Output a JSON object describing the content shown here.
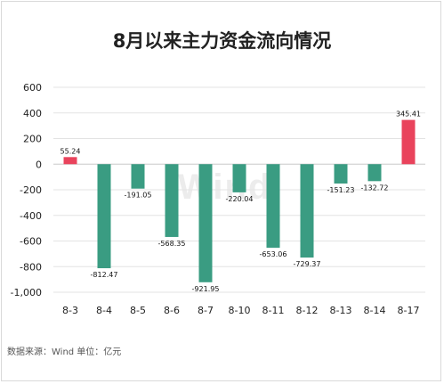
{
  "colors": {
    "positive": "#e9435c",
    "negative": "#3a9c82",
    "grid": "#e3e3e3"
  },
  "footer": {
    "source": "数据来源：Wind    单位：亿元"
  },
  "chart_data": {
    "type": "bar",
    "title": "8月以来主力资金流向情况",
    "categories": [
      "8-3",
      "8-4",
      "8-5",
      "8-6",
      "8-7",
      "8-10",
      "8-11",
      "8-12",
      "8-13",
      "8-14",
      "8-17"
    ],
    "values": [
      55.24,
      -812.47,
      -191.05,
      -568.35,
      -921.95,
      -220.04,
      -653.06,
      -729.37,
      -151.23,
      -132.72,
      345.41
    ],
    "data_labels": [
      "55.24",
      "-812.47",
      "-191.05",
      "-568.35",
      "-921.95",
      "-220.04",
      "-653.06",
      "-729.37",
      "-151.23",
      "-132.72",
      "345.41"
    ],
    "yticks": [
      600,
      400,
      200,
      0,
      -200,
      -400,
      -600,
      -800,
      -1000
    ],
    "ytick_labels": [
      "600",
      "400",
      "200",
      "0",
      "-200",
      "-400",
      "-600",
      "-800",
      "-1,000"
    ],
    "ylim": [
      -1000,
      600
    ],
    "grid": true,
    "legend": "none"
  }
}
